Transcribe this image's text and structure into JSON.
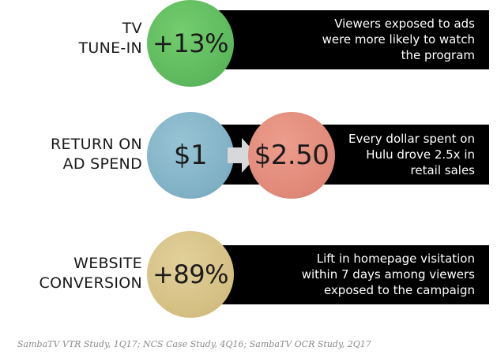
{
  "rows": [
    {
      "label": [
        "TV",
        "TUNE-IN"
      ],
      "value": "+13%",
      "description": [
        "Viewers exposed to ads",
        "were more likely to watch",
        "the program"
      ],
      "color": "#5cb85c"
    },
    {
      "label": [
        "RETURN ON",
        "AD SPEND"
      ],
      "value_before": "$1",
      "value_after": "$2.50",
      "description": [
        "Every dollar spent on",
        "Hulu drove 2.5x in",
        "retail sales"
      ],
      "color_before": "#7fb0c5",
      "color_after": "#e08878"
    },
    {
      "label": [
        "WEBSITE",
        "CONVERSION"
      ],
      "value": "+89%",
      "description": [
        "Lift in homepage visitation",
        "within 7 days among viewers",
        "exposed to the campaign"
      ],
      "color": "#d4bf82"
    }
  ],
  "source": "SambaTV VTR Study, 1Q17; NCS Case Study, 4Q16; SambaTV OCR Study, 2Q17"
}
